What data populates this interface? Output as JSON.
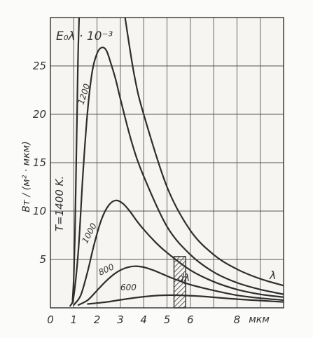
{
  "chart_data": {
    "type": "line",
    "title": "",
    "ylabel_top": "E₀λ · 10⁻³",
    "ylabel": "Вт / (м² · мкм)",
    "xunit": "мкм",
    "xsymbol": "λ",
    "band_label": "dλ",
    "temperature_label": "T=1400 K.",
    "xlim": [
      0,
      10
    ],
    "ylim": [
      0,
      30
    ],
    "xticks": [
      0,
      1,
      2,
      3,
      4,
      5,
      6,
      7,
      8,
      9,
      10
    ],
    "xtick_labels": [
      "0",
      "1",
      "2",
      "3",
      "4",
      "5",
      "6",
      "",
      "8",
      "",
      ""
    ],
    "yticks": [
      5,
      10,
      15,
      20,
      25
    ],
    "ytick_labels": [
      "5",
      "10",
      "15",
      "20",
      "25"
    ],
    "grid": true,
    "band": {
      "from": 5.3,
      "to": 5.8
    },
    "series": [
      {
        "name": "1400",
        "label": "",
        "x": [
          0.95,
          1.0,
          1.05,
          1.1,
          1.15,
          1.2,
          1.3
        ],
        "y": [
          0.8,
          3.0,
          7.5,
          14.0,
          21.0,
          27.5,
          35.0
        ]
      },
      {
        "name": "1400-tail",
        "label": "",
        "x": [
          3.2,
          3.6,
          4.0,
          5.0,
          6.0,
          7.0,
          8.0,
          9.0,
          10.0
        ],
        "y": [
          30.0,
          24.0,
          20.0,
          12.5,
          8.0,
          5.5,
          4.0,
          3.0,
          2.3
        ]
      },
      {
        "name": "1200",
        "label": "1200",
        "x": [
          0.85,
          1.0,
          1.2,
          1.4,
          1.6,
          1.8,
          2.0,
          2.2,
          2.4,
          2.6,
          2.8,
          3.0,
          3.5,
          4.0,
          5.0,
          6.0,
          7.0,
          8.0,
          9.0,
          10.0
        ],
        "y": [
          0.2,
          1.2,
          6.0,
          14.0,
          20.5,
          24.5,
          26.3,
          26.9,
          26.6,
          25.2,
          23.6,
          21.6,
          17.0,
          13.6,
          8.4,
          5.5,
          3.7,
          2.6,
          1.9,
          1.4
        ]
      },
      {
        "name": "1000",
        "label": "1000",
        "x": [
          1.0,
          1.3,
          1.6,
          1.9,
          2.2,
          2.5,
          2.8,
          3.1,
          3.4,
          3.7,
          4.0,
          4.5,
          5.0,
          6.0,
          7.0,
          8.0,
          9.0,
          10.0
        ],
        "y": [
          0.3,
          1.3,
          3.8,
          6.8,
          9.2,
          10.6,
          11.1,
          10.8,
          10.0,
          9.0,
          8.1,
          6.8,
          5.7,
          3.9,
          2.7,
          1.9,
          1.4,
          1.1
        ]
      },
      {
        "name": "800",
        "label": "800",
        "x": [
          1.2,
          1.6,
          2.0,
          2.4,
          2.8,
          3.2,
          3.6,
          4.0,
          4.4,
          4.8,
          5.3,
          6.0,
          7.0,
          8.0,
          9.0,
          10.0
        ],
        "y": [
          0.3,
          0.8,
          1.8,
          2.8,
          3.6,
          4.1,
          4.3,
          4.2,
          3.9,
          3.5,
          3.0,
          2.4,
          1.8,
          1.3,
          1.0,
          0.8
        ]
      },
      {
        "name": "600",
        "label": "600",
        "x": [
          1.6,
          2.4,
          3.2,
          4.0,
          4.8,
          5.6,
          6.4,
          7.2,
          8.0,
          9.0,
          10.0
        ],
        "y": [
          0.4,
          0.6,
          0.9,
          1.15,
          1.3,
          1.3,
          1.2,
          1.05,
          0.9,
          0.75,
          0.6
        ]
      }
    ]
  }
}
